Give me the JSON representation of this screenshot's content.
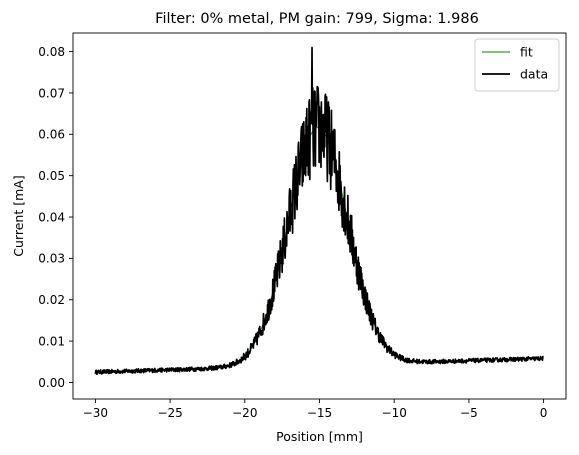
{
  "chart_data": {
    "type": "line",
    "title": "Filter: 0% metal, PM gain: 799, Sigma: 1.986",
    "xlabel": "Position [mm]",
    "ylabel": "Current [mA]",
    "xlim": [
      -31.5,
      1.5
    ],
    "ylim": [
      -0.004,
      0.0845
    ],
    "xticks": [
      -30,
      -25,
      -20,
      -15,
      -10,
      -5,
      0
    ],
    "xtick_labels": [
      "−30",
      "−25",
      "−20",
      "−15",
      "−10",
      "−5",
      "0"
    ],
    "yticks": [
      0.0,
      0.01,
      0.02,
      0.03,
      0.04,
      0.05,
      0.06,
      0.07,
      0.08
    ],
    "ytick_labels": [
      "0.00",
      "0.01",
      "0.02",
      "0.03",
      "0.04",
      "0.05",
      "0.06",
      "0.07",
      "0.08"
    ],
    "grid": false,
    "legend_position": "top-right",
    "series": [
      {
        "name": "fit",
        "color": "#008000",
        "style": "thin",
        "fit": {
          "baseline_left": 0.0025,
          "baseline_right": 0.0058,
          "amplitude": 0.0575,
          "center": -15.1,
          "sigma": 1.986
        }
      },
      {
        "name": "data",
        "color": "#000000",
        "style": "thick",
        "noise_peak": 0.0105,
        "noise_baseline": 0.0005,
        "max_point": [
          -15.5,
          0.081
        ],
        "points": 1200
      }
    ]
  }
}
